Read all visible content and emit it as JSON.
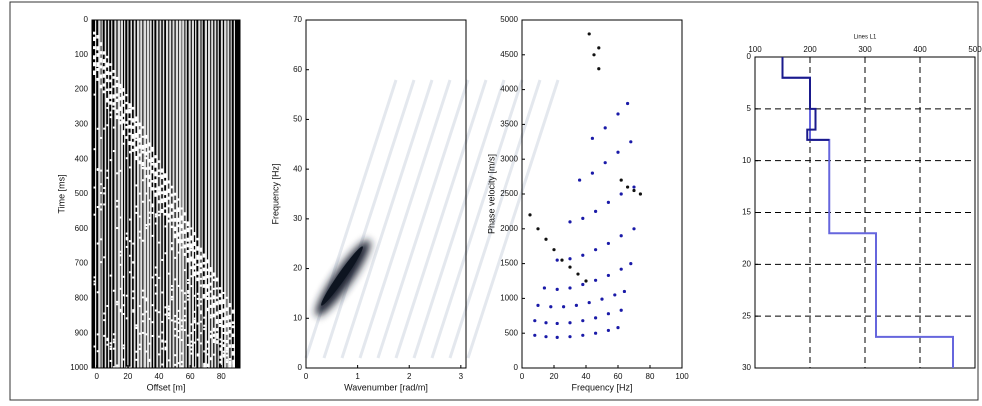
{
  "chart_data": [
    {
      "type": "seismogram",
      "xlabel": "Offset [m]",
      "ylabel": "Time [ms]",
      "xlim": [
        -3,
        92
      ],
      "xticks": [
        0,
        20,
        40,
        60,
        80
      ],
      "ylim": [
        0,
        1000
      ],
      "yticks": [
        0,
        100,
        200,
        300,
        400,
        500,
        600,
        700,
        800,
        900,
        1000
      ],
      "y_inverted": true
    },
    {
      "type": "spectrum",
      "xlabel": "Wavenumber [rad/m]",
      "ylabel": "Frequency [Hz]",
      "xlim": [
        0,
        3.1
      ],
      "xticks": [
        0,
        1,
        2,
        3
      ],
      "ylim": [
        0,
        70
      ],
      "yticks": [
        0,
        10,
        20,
        30,
        40,
        50,
        60,
        70
      ]
    },
    {
      "type": "scatter",
      "xlabel": "Frequency [Hz]",
      "ylabel": "Phase velocity [m/s]",
      "xlim": [
        0,
        100
      ],
      "xticks": [
        0,
        20,
        40,
        60,
        80,
        100
      ],
      "ylim": [
        0,
        5000
      ],
      "yticks": [
        0,
        500,
        1000,
        1500,
        2000,
        2500,
        3000,
        3500,
        4000,
        4500,
        5000
      ],
      "series": [
        {
          "color": "#1a1aa8",
          "x": [
            8,
            15,
            22,
            30,
            38,
            46,
            54,
            60
          ],
          "values": [
            470,
            450,
            440,
            450,
            470,
            500,
            540,
            580
          ]
        },
        {
          "color": "#1a1aa8",
          "x": [
            8,
            15,
            22,
            30,
            38,
            46,
            54,
            62
          ],
          "values": [
            680,
            650,
            640,
            650,
            680,
            720,
            780,
            830
          ]
        },
        {
          "color": "#1a1aa8",
          "x": [
            10,
            18,
            26,
            34,
            42,
            50,
            58,
            64
          ],
          "values": [
            900,
            880,
            880,
            900,
            940,
            990,
            1050,
            1100
          ]
        },
        {
          "color": "#1a1aa8",
          "x": [
            14,
            22,
            30,
            38,
            46,
            54,
            62,
            68
          ],
          "values": [
            1150,
            1130,
            1150,
            1200,
            1260,
            1330,
            1420,
            1500
          ]
        },
        {
          "color": "#1a1aa8",
          "x": [
            22,
            30,
            38,
            46,
            54,
            62,
            70
          ],
          "values": [
            1550,
            1570,
            1620,
            1700,
            1790,
            1900,
            2000
          ]
        },
        {
          "color": "#1a1aa8",
          "x": [
            30,
            38,
            46,
            54,
            62,
            70
          ],
          "values": [
            2100,
            2150,
            2250,
            2380,
            2500,
            2600
          ]
        },
        {
          "color": "#1a1aa8",
          "x": [
            36,
            44,
            52,
            60,
            68
          ],
          "values": [
            2700,
            2800,
            2950,
            3100,
            3250
          ]
        },
        {
          "color": "#1a1aa8",
          "x": [
            44,
            52,
            60,
            66
          ],
          "values": [
            3300,
            3450,
            3650,
            3800
          ]
        },
        {
          "color": "#111111",
          "x": [
            5,
            10,
            15,
            20,
            25,
            30,
            35,
            40
          ],
          "values": [
            2200,
            2000,
            1850,
            1700,
            1550,
            1450,
            1350,
            1250
          ]
        },
        {
          "color": "#111111",
          "x": [
            62,
            66,
            70,
            74
          ],
          "values": [
            2700,
            2600,
            2550,
            2500
          ]
        },
        {
          "color": "#111111",
          "x": [
            42,
            45,
            48,
            48
          ],
          "values": [
            4800,
            4500,
            4600,
            4300
          ]
        }
      ]
    },
    {
      "type": "step",
      "title": "Lines L1",
      "xlim": [
        100,
        500
      ],
      "xticks": [
        100,
        200,
        300,
        400,
        500
      ],
      "x_axis_position": "top",
      "ylim": [
        0,
        30
      ],
      "yticks": [
        0,
        5,
        10,
        15,
        20,
        25,
        30
      ],
      "y_inverted": true,
      "grid": true,
      "series": [
        {
          "color": "#6666dd",
          "x": [
            150,
            150,
            200,
            200,
            235,
            235,
            320,
            320,
            460,
            460
          ],
          "values": [
            0,
            2,
            2,
            8,
            8,
            17,
            17,
            27,
            27,
            30
          ]
        },
        {
          "color": "#1a1a8c",
          "x": [
            150,
            150,
            200,
            200,
            210,
            210,
            195,
            195,
            235
          ],
          "values": [
            0,
            2,
            2,
            5,
            5,
            7,
            7,
            8,
            8
          ]
        }
      ]
    }
  ]
}
